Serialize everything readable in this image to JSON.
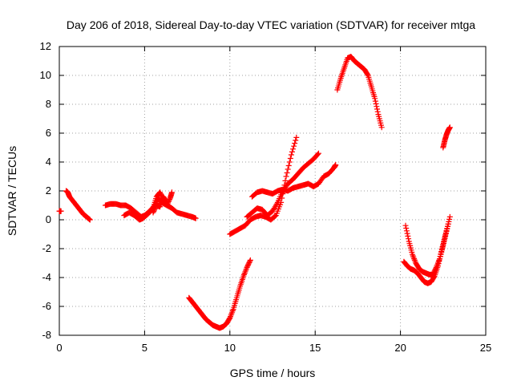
{
  "chart_data": {
    "type": "scatter",
    "title": "Day 206 of 2018, Sidereal Day-to-day VTEC variation (SDTVAR) for receiver mtga",
    "xlabel": "GPS time / hours",
    "ylabel": "SDTVAR / TECUs",
    "xlim": [
      0,
      25
    ],
    "ylim": [
      -8,
      12
    ],
    "xticks": [
      "0",
      "5",
      "10",
      "15",
      "20",
      "25"
    ],
    "yticks": [
      "-8",
      "-6",
      "-4",
      "-2",
      "0",
      "2",
      "4",
      "6",
      "8",
      "10",
      "12"
    ],
    "grid": true,
    "marker": "+",
    "color": "#ff0000",
    "series": [
      {
        "x": [
          0.0,
          0.1
        ],
        "y": [
          0.6,
          0.6
        ]
      },
      {
        "x": [
          0.4,
          0.5,
          0.6,
          0.8,
          1.0,
          1.2,
          1.4,
          1.6,
          1.8
        ],
        "y": [
          2.0,
          1.9,
          1.6,
          1.3,
          1.0,
          0.7,
          0.4,
          0.2,
          0.0
        ]
      },
      {
        "x": [
          2.7,
          3.0,
          3.3,
          3.6,
          3.9,
          4.2,
          4.5,
          4.8,
          5.0,
          5.3,
          5.6,
          5.8,
          6.0,
          6.3,
          6.6,
          6.9,
          7.2,
          7.5,
          7.8,
          8.0
        ],
        "y": [
          1.0,
          1.1,
          1.1,
          1.0,
          1.0,
          0.8,
          0.5,
          0.2,
          0.3,
          0.6,
          1.0,
          1.5,
          1.2,
          1.0,
          0.8,
          0.5,
          0.4,
          0.3,
          0.2,
          0.1
        ]
      },
      {
        "x": [
          3.8,
          4.1,
          4.4,
          4.7,
          4.9,
          5.2,
          5.5,
          5.7,
          5.9,
          6.1,
          6.3,
          6.5,
          6.6
        ],
        "y": [
          0.3,
          0.5,
          0.3,
          0.0,
          0.1,
          0.4,
          0.8,
          1.6,
          1.9,
          1.4,
          1.0,
          1.5,
          1.9
        ]
      },
      {
        "x": [
          5.5,
          5.7,
          5.9,
          6.1,
          6.3
        ],
        "y": [
          0.5,
          1.0,
          0.9,
          1.6,
          1.2
        ]
      },
      {
        "x": [
          7.6,
          7.8,
          8.0,
          8.2,
          8.4,
          8.6,
          8.8,
          9.0,
          9.2,
          9.4,
          9.6,
          9.8,
          10.0,
          10.2,
          10.4,
          10.6,
          10.8,
          11.0,
          11.2
        ],
        "y": [
          -5.4,
          -5.7,
          -6.0,
          -6.3,
          -6.6,
          -6.9,
          -7.1,
          -7.3,
          -7.4,
          -7.5,
          -7.4,
          -7.2,
          -6.8,
          -6.2,
          -5.4,
          -4.6,
          -3.9,
          -3.3,
          -2.8
        ]
      },
      {
        "x": [
          10.0,
          10.3,
          10.6,
          10.9,
          11.2,
          11.5,
          11.8,
          12.1,
          12.4,
          12.7,
          13.0,
          13.3,
          13.6,
          13.9
        ],
        "y": [
          -1.0,
          -0.8,
          -0.6,
          -0.4,
          0.0,
          0.2,
          0.3,
          0.2,
          0.0,
          0.3,
          1.2,
          3.0,
          4.5,
          5.7
        ]
      },
      {
        "x": [
          11.0,
          11.3,
          11.6,
          11.9,
          12.2,
          12.5,
          12.8,
          13.1,
          13.4,
          13.7,
          14.0,
          14.3,
          14.6,
          14.9,
          15.2
        ],
        "y": [
          0.2,
          0.5,
          0.8,
          0.7,
          0.3,
          0.6,
          1.2,
          2.0,
          2.5,
          2.8,
          3.2,
          3.6,
          3.9,
          4.2,
          4.6
        ]
      },
      {
        "x": [
          11.3,
          11.6,
          11.9,
          12.2,
          12.5,
          12.8,
          13.1,
          13.4,
          13.7,
          14.0,
          14.3,
          14.6,
          14.9,
          15.2,
          15.5,
          15.8,
          16.1,
          16.2
        ],
        "y": [
          1.6,
          1.9,
          2.0,
          1.9,
          1.8,
          2.0,
          2.1,
          2.0,
          2.2,
          2.3,
          2.4,
          2.5,
          2.3,
          2.5,
          3.0,
          3.2,
          3.6,
          3.8
        ]
      },
      {
        "x": [
          16.3,
          16.5,
          16.7,
          16.9,
          17.1,
          17.3,
          17.5,
          17.7,
          17.9,
          18.1,
          18.3,
          18.5,
          18.7,
          18.9
        ],
        "y": [
          9.0,
          9.8,
          10.5,
          11.2,
          11.3,
          11.0,
          10.8,
          10.6,
          10.4,
          10.0,
          9.2,
          8.4,
          7.3,
          6.4
        ]
      },
      {
        "x": [
          22.5,
          22.6,
          22.7,
          22.8,
          22.9
        ],
        "y": [
          5.0,
          5.5,
          5.9,
          6.2,
          6.4
        ]
      },
      {
        "x": [
          20.3,
          20.5,
          20.7,
          20.9,
          21.1,
          21.3,
          21.5,
          21.7,
          21.9,
          22.1,
          22.3,
          22.5,
          22.7,
          22.9
        ],
        "y": [
          -0.4,
          -1.5,
          -2.4,
          -3.0,
          -3.4,
          -3.6,
          -3.7,
          -3.8,
          -3.8,
          -3.3,
          -2.7,
          -1.8,
          -0.8,
          0.2
        ]
      },
      {
        "x": [
          20.2,
          20.4,
          20.6,
          20.8,
          21.0,
          21.2,
          21.4,
          21.6,
          21.8,
          22.0,
          22.2,
          22.4,
          22.6,
          22.8
        ],
        "y": [
          -2.9,
          -3.2,
          -3.4,
          -3.5,
          -3.7,
          -4.0,
          -4.3,
          -4.4,
          -4.3,
          -3.9,
          -3.2,
          -2.2,
          -1.2,
          -0.3
        ]
      }
    ]
  }
}
